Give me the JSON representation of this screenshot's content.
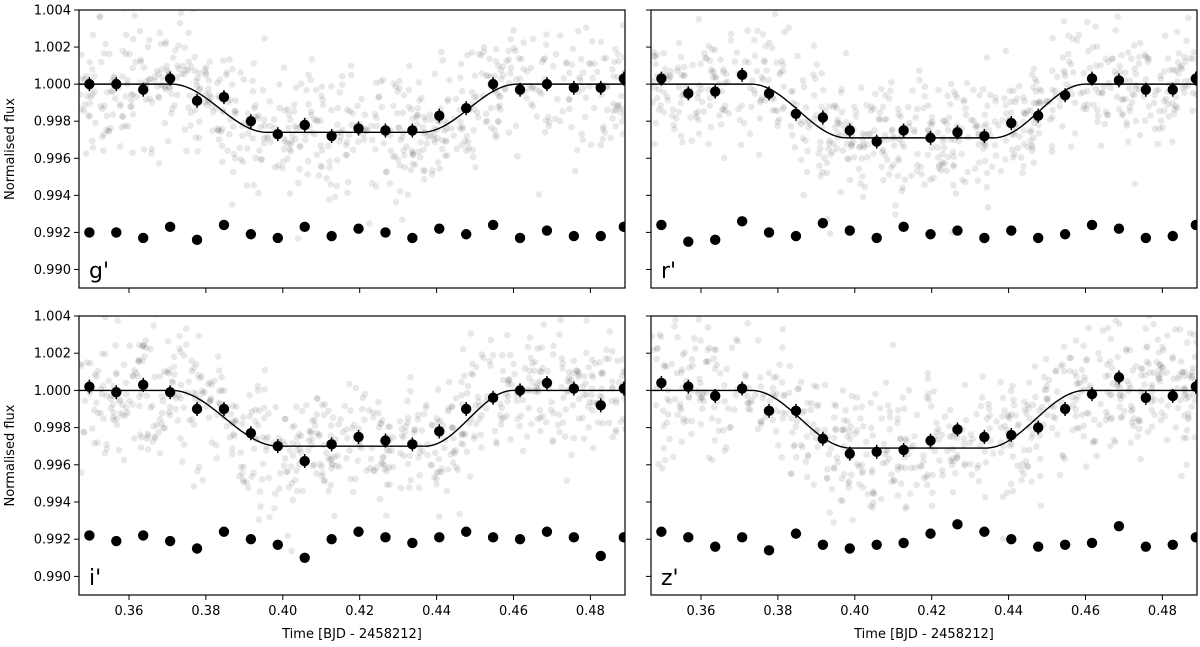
{
  "figure": {
    "xlabel": "Time [BJD - 2458212]",
    "ylabel": "Normalised flux"
  },
  "chart_data": [
    {
      "type": "scatter",
      "band": "g'",
      "xlim": [
        0.347,
        0.489
      ],
      "ylim": [
        0.989,
        1.004
      ],
      "xticks": [
        "0.36",
        "0.38",
        "0.40",
        "0.42",
        "0.44",
        "0.46",
        "0.48"
      ],
      "yticks": [
        "0.990",
        "0.992",
        "0.994",
        "0.996",
        "0.998",
        "1.000",
        "1.002",
        "1.004"
      ],
      "xlabel": "",
      "ylabel": "Normalised flux",
      "model": {
        "t1": 0.371,
        "t2": 0.396,
        "t3": 0.436,
        "t4": 0.461,
        "depth": 0.0026
      },
      "binned": {
        "x": [
          0.3497,
          0.3567,
          0.3637,
          0.3707,
          0.3777,
          0.3847,
          0.3917,
          0.3987,
          0.4057,
          0.4127,
          0.4197,
          0.4267,
          0.4337,
          0.4407,
          0.4477,
          0.4547,
          0.4617,
          0.4687,
          0.4757,
          0.4827,
          0.4887
        ],
        "y": [
          1.0,
          1.0,
          0.9997,
          1.0003,
          0.9991,
          0.9993,
          0.998,
          0.9973,
          0.9978,
          0.9972,
          0.9976,
          0.9975,
          0.9975,
          0.9983,
          0.9987,
          1.0,
          0.9997,
          1.0,
          0.9998,
          0.9998,
          1.0003
        ]
      },
      "residuals": {
        "x": [
          0.3497,
          0.3567,
          0.3637,
          0.3707,
          0.3777,
          0.3847,
          0.3917,
          0.3987,
          0.4057,
          0.4127,
          0.4197,
          0.4267,
          0.4337,
          0.4407,
          0.4477,
          0.4547,
          0.4617,
          0.4687,
          0.4757,
          0.4827,
          0.4887
        ],
        "y": [
          0.992,
          0.992,
          0.9917,
          0.9923,
          0.9916,
          0.9924,
          0.9919,
          0.9917,
          0.9923,
          0.9918,
          0.9922,
          0.992,
          0.9917,
          0.9922,
          0.9919,
          0.9924,
          0.9917,
          0.9921,
          0.9918,
          0.9918,
          0.9923
        ]
      }
    },
    {
      "type": "scatter",
      "band": "r'",
      "xlim": [
        0.347,
        0.489
      ],
      "ylim": [
        0.989,
        1.004
      ],
      "xticks": [
        "0.36",
        "0.38",
        "0.40",
        "0.42",
        "0.44",
        "0.46",
        "0.48"
      ],
      "yticks": [
        "0.990",
        "0.992",
        "0.994",
        "0.996",
        "0.998",
        "1.000",
        "1.002",
        "1.004"
      ],
      "xlabel": "",
      "ylabel": "",
      "model": {
        "t1": 0.373,
        "t2": 0.398,
        "t3": 0.436,
        "t4": 0.46,
        "depth": 0.0029
      },
      "binned": {
        "x": [
          0.3497,
          0.3567,
          0.3637,
          0.3707,
          0.3777,
          0.3847,
          0.3917,
          0.3987,
          0.4057,
          0.4127,
          0.4197,
          0.4267,
          0.4337,
          0.4407,
          0.4477,
          0.4547,
          0.4617,
          0.4687,
          0.4757,
          0.4827,
          0.4887
        ],
        "y": [
          1.0003,
          0.9995,
          0.9996,
          1.0005,
          0.9995,
          0.9984,
          0.9982,
          0.9975,
          0.9969,
          0.9975,
          0.9971,
          0.9974,
          0.9972,
          0.9979,
          0.9983,
          0.9994,
          1.0003,
          1.0002,
          0.9997,
          0.9997,
          1.0003
        ]
      },
      "residuals": {
        "x": [
          0.3497,
          0.3567,
          0.3637,
          0.3707,
          0.3777,
          0.3847,
          0.3917,
          0.3987,
          0.4057,
          0.4127,
          0.4197,
          0.4267,
          0.4337,
          0.4407,
          0.4477,
          0.4547,
          0.4617,
          0.4687,
          0.4757,
          0.4827,
          0.4887
        ],
        "y": [
          0.9924,
          0.9915,
          0.9916,
          0.9926,
          0.992,
          0.9918,
          0.9925,
          0.9921,
          0.9917,
          0.9923,
          0.9919,
          0.9921,
          0.9917,
          0.9921,
          0.9917,
          0.9919,
          0.9924,
          0.9922,
          0.9917,
          0.9918,
          0.9924
        ]
      }
    },
    {
      "type": "scatter",
      "band": "i'",
      "xlim": [
        0.347,
        0.489
      ],
      "ylim": [
        0.989,
        1.004
      ],
      "xticks": [
        "0.36",
        "0.38",
        "0.40",
        "0.42",
        "0.44",
        "0.46",
        "0.48"
      ],
      "yticks": [
        "0.990",
        "0.992",
        "0.994",
        "0.996",
        "0.998",
        "1.000",
        "1.002",
        "1.004"
      ],
      "xlabel": "Time [BJD - 2458212]",
      "ylabel": "Normalised flux",
      "model": {
        "t1": 0.371,
        "t2": 0.399,
        "t3": 0.437,
        "t4": 0.46,
        "depth": 0.003
      },
      "binned": {
        "x": [
          0.3497,
          0.3567,
          0.3637,
          0.3707,
          0.3777,
          0.3847,
          0.3917,
          0.3987,
          0.4057,
          0.4127,
          0.4197,
          0.4267,
          0.4337,
          0.4407,
          0.4477,
          0.4547,
          0.4617,
          0.4687,
          0.4757,
          0.4827,
          0.4887
        ],
        "y": [
          1.0002,
          0.9999,
          1.0003,
          0.9999,
          0.999,
          0.999,
          0.9977,
          0.997,
          0.9962,
          0.9971,
          0.9975,
          0.9973,
          0.9971,
          0.9978,
          0.999,
          0.9996,
          1.0,
          1.0004,
          1.0001,
          0.9992,
          1.0001
        ]
      },
      "residuals": {
        "x": [
          0.3497,
          0.3567,
          0.3637,
          0.3707,
          0.3777,
          0.3847,
          0.3917,
          0.3987,
          0.4057,
          0.4127,
          0.4197,
          0.4267,
          0.4337,
          0.4407,
          0.4477,
          0.4547,
          0.4617,
          0.4687,
          0.4757,
          0.4827,
          0.4887
        ],
        "y": [
          0.9922,
          0.9919,
          0.9922,
          0.9919,
          0.9915,
          0.9924,
          0.992,
          0.9917,
          0.991,
          0.992,
          0.9924,
          0.9921,
          0.9918,
          0.9921,
          0.9924,
          0.9921,
          0.992,
          0.9924,
          0.9921,
          0.9911,
          0.9921
        ]
      }
    },
    {
      "type": "scatter",
      "band": "z'",
      "xlim": [
        0.347,
        0.489
      ],
      "ylim": [
        0.989,
        1.004
      ],
      "xticks": [
        "0.36",
        "0.38",
        "0.40",
        "0.42",
        "0.44",
        "0.46",
        "0.48"
      ],
      "yticks": [
        "0.990",
        "0.992",
        "0.994",
        "0.996",
        "0.998",
        "1.000",
        "1.002",
        "1.004"
      ],
      "xlabel": "Time [BJD - 2458212]",
      "ylabel": "",
      "model": {
        "t1": 0.373,
        "t2": 0.399,
        "t3": 0.434,
        "t4": 0.46,
        "depth": 0.0031
      },
      "binned": {
        "x": [
          0.3497,
          0.3567,
          0.3637,
          0.3707,
          0.3777,
          0.3847,
          0.3917,
          0.3987,
          0.4057,
          0.4127,
          0.4197,
          0.4267,
          0.4337,
          0.4407,
          0.4477,
          0.4547,
          0.4617,
          0.4687,
          0.4757,
          0.4827,
          0.4887
        ],
        "y": [
          1.0004,
          1.0002,
          0.9997,
          1.0001,
          0.9989,
          0.9989,
          0.9974,
          0.9966,
          0.9967,
          0.9968,
          0.9973,
          0.9979,
          0.9975,
          0.9976,
          0.998,
          0.999,
          0.9998,
          1.0007,
          0.9996,
          0.9997,
          1.0002
        ]
      },
      "residuals": {
        "x": [
          0.3497,
          0.3567,
          0.3637,
          0.3707,
          0.3777,
          0.3847,
          0.3917,
          0.3987,
          0.4057,
          0.4127,
          0.4197,
          0.4267,
          0.4337,
          0.4407,
          0.4477,
          0.4547,
          0.4617,
          0.4687,
          0.4757,
          0.4827,
          0.4887
        ],
        "y": [
          0.9924,
          0.9921,
          0.9916,
          0.9921,
          0.9914,
          0.9923,
          0.9917,
          0.9915,
          0.9917,
          0.9918,
          0.9923,
          0.9928,
          0.9924,
          0.992,
          0.9916,
          0.9917,
          0.9918,
          0.9927,
          0.9916,
          0.9917,
          0.9921
        ]
      }
    }
  ]
}
